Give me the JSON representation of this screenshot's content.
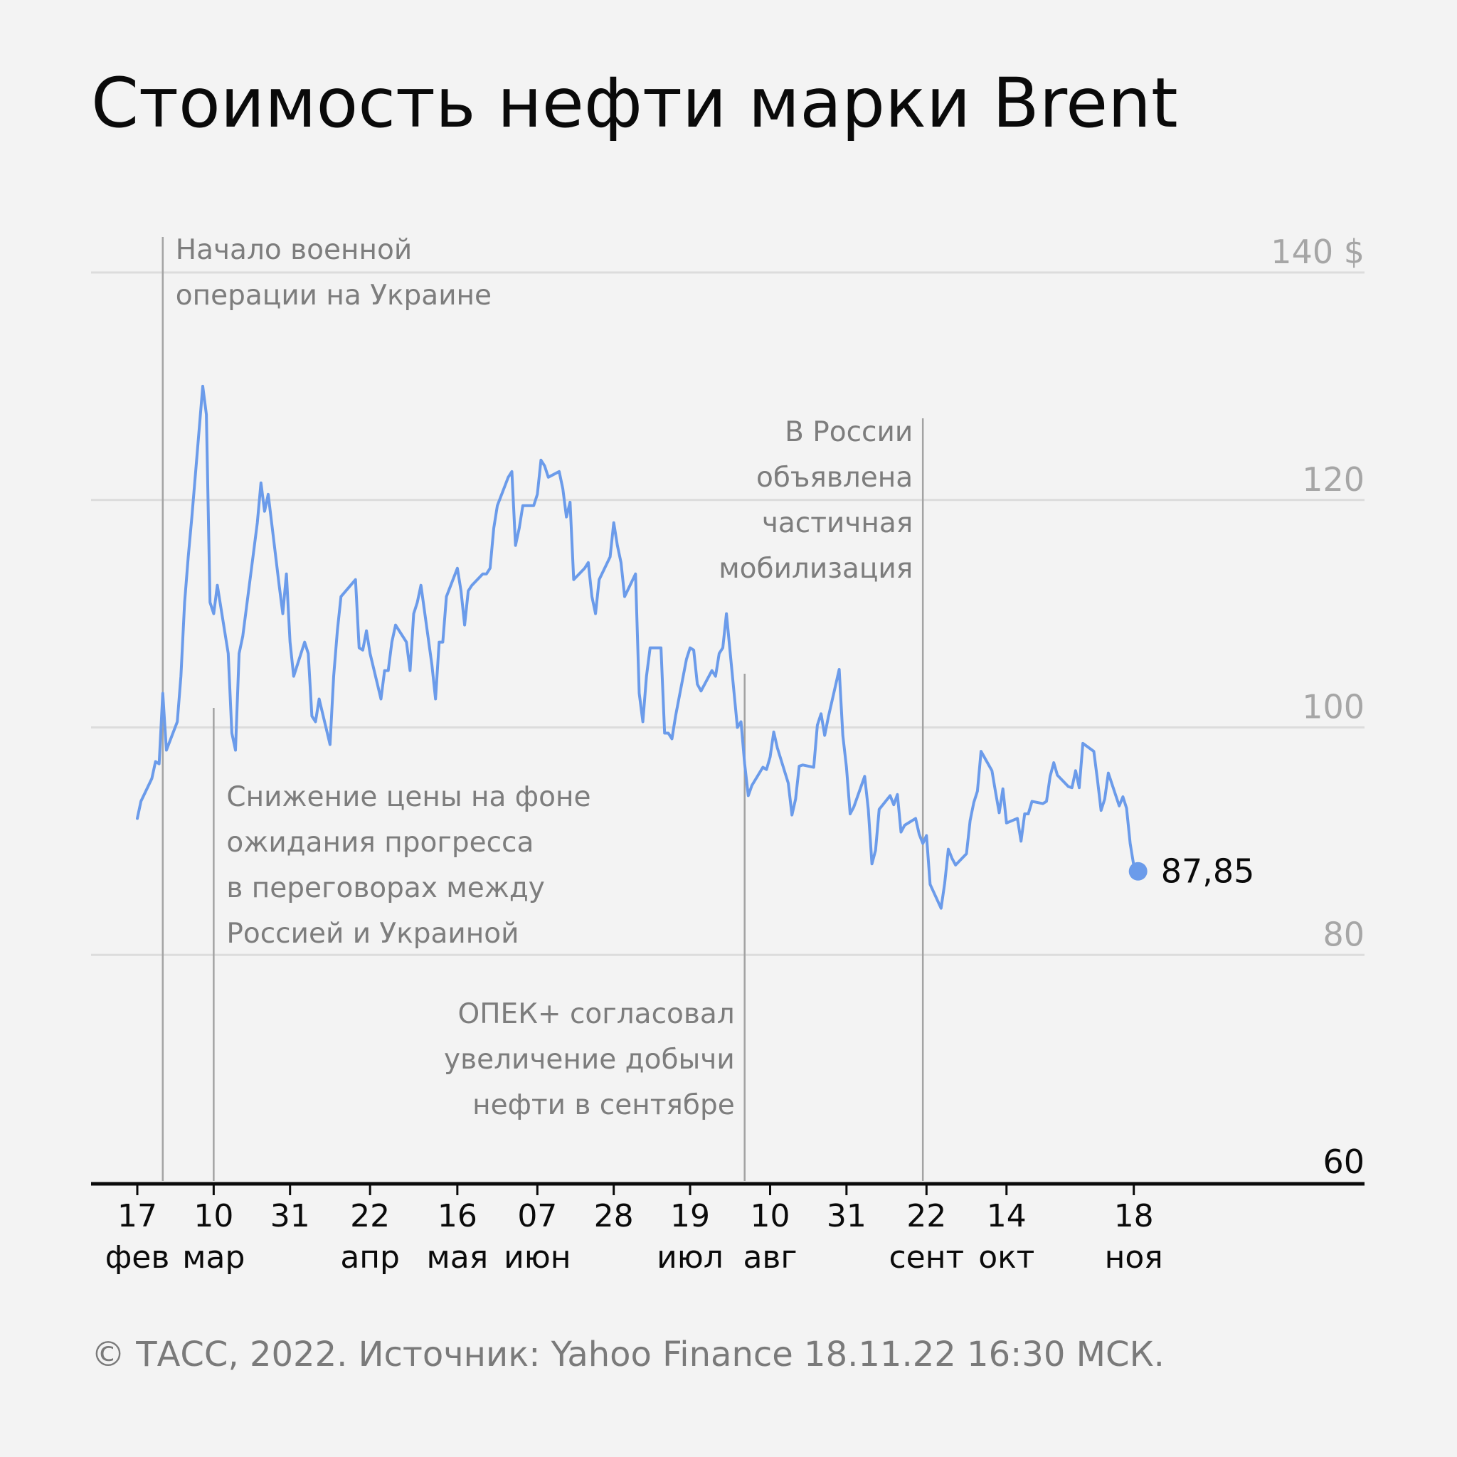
{
  "chart_data": {
    "type": "line",
    "title": "Стоимость нефти марки Brent",
    "source": "© ТАСС, 2022. Источник: Yahoo Finance 18.11.22 16:30 МСК.",
    "ylim": [
      60,
      140
    ],
    "y_ticks": [
      {
        "value": 140,
        "label": "140 $"
      },
      {
        "value": 120,
        "label": "120"
      },
      {
        "value": 100,
        "label": "100"
      },
      {
        "value": 80,
        "label": "80"
      },
      {
        "value": 60,
        "label": "60"
      }
    ],
    "x_ticks": [
      {
        "date": "2022-02-17",
        "day": "17",
        "month": "фев"
      },
      {
        "date": "2022-03-10",
        "day": "10",
        "month": "мар"
      },
      {
        "date": "2022-03-31",
        "day": "31",
        "month": ""
      },
      {
        "date": "2022-04-22",
        "day": "22",
        "month": "апр"
      },
      {
        "date": "2022-05-16",
        "day": "16",
        "month": "мая"
      },
      {
        "date": "2022-06-07",
        "day": "07",
        "month": "июн"
      },
      {
        "date": "2022-06-28",
        "day": "28",
        "month": ""
      },
      {
        "date": "2022-07-19",
        "day": "19",
        "month": "июл"
      },
      {
        "date": "2022-08-10",
        "day": "10",
        "month": "авг"
      },
      {
        "date": "2022-08-31",
        "day": "31",
        "month": ""
      },
      {
        "date": "2022-09-22",
        "day": "22",
        "month": "сент"
      },
      {
        "date": "2022-10-14",
        "day": "14",
        "month": "окт"
      },
      {
        "date": "2022-11-18",
        "day": "18",
        "month": "ноя"
      }
    ],
    "series": [
      {
        "color": "#6b9bea",
        "points": [
          [
            "2022-02-17",
            92.0
          ],
          [
            "2022-02-18",
            93.5
          ],
          [
            "2022-02-21",
            95.5
          ],
          [
            "2022-02-22",
            97.0
          ],
          [
            "2022-02-23",
            96.8
          ],
          [
            "2022-02-24",
            103.0
          ],
          [
            "2022-02-25",
            98.0
          ],
          [
            "2022-02-28",
            100.5
          ],
          [
            "2022-03-01",
            104.5
          ],
          [
            "2022-03-02",
            111.0
          ],
          [
            "2022-03-03",
            115.0
          ],
          [
            "2022-03-04",
            118.5
          ],
          [
            "2022-03-07",
            130.0
          ],
          [
            "2022-03-08",
            127.5
          ],
          [
            "2022-03-09",
            111.0
          ],
          [
            "2022-03-10",
            110.0
          ],
          [
            "2022-03-11",
            112.5
          ],
          [
            "2022-03-14",
            106.5
          ],
          [
            "2022-03-15",
            99.5
          ],
          [
            "2022-03-16",
            98.0
          ],
          [
            "2022-03-17",
            106.5
          ],
          [
            "2022-03-18",
            108.0
          ],
          [
            "2022-03-21",
            115.5
          ],
          [
            "2022-03-22",
            118.0
          ],
          [
            "2022-03-23",
            121.5
          ],
          [
            "2022-03-24",
            119.0
          ],
          [
            "2022-03-25",
            120.5
          ],
          [
            "2022-03-28",
            112.5
          ],
          [
            "2022-03-29",
            110.0
          ],
          [
            "2022-03-30",
            113.5
          ],
          [
            "2022-03-31",
            107.5
          ],
          [
            "2022-04-01",
            104.5
          ],
          [
            "2022-04-04",
            107.5
          ],
          [
            "2022-04-05",
            106.5
          ],
          [
            "2022-04-06",
            101.0
          ],
          [
            "2022-04-07",
            100.5
          ],
          [
            "2022-04-08",
            102.5
          ],
          [
            "2022-04-11",
            98.5
          ],
          [
            "2022-04-12",
            104.5
          ],
          [
            "2022-04-13",
            108.5
          ],
          [
            "2022-04-14",
            111.5
          ],
          [
            "2022-04-18",
            113.0
          ],
          [
            "2022-04-19",
            107.0
          ],
          [
            "2022-04-20",
            106.8
          ],
          [
            "2022-04-21",
            108.5
          ],
          [
            "2022-04-22",
            106.5
          ],
          [
            "2022-04-25",
            102.5
          ],
          [
            "2022-04-26",
            105.0
          ],
          [
            "2022-04-27",
            105.0
          ],
          [
            "2022-04-28",
            107.5
          ],
          [
            "2022-04-29",
            109.0
          ],
          [
            "2022-05-02",
            107.5
          ],
          [
            "2022-05-03",
            105.0
          ],
          [
            "2022-05-04",
            110.0
          ],
          [
            "2022-05-05",
            111.0
          ],
          [
            "2022-05-06",
            112.5
          ],
          [
            "2022-05-09",
            105.5
          ],
          [
            "2022-05-10",
            102.5
          ],
          [
            "2022-05-11",
            107.5
          ],
          [
            "2022-05-12",
            107.5
          ],
          [
            "2022-05-13",
            111.5
          ],
          [
            "2022-05-16",
            114.0
          ],
          [
            "2022-05-17",
            112.0
          ],
          [
            "2022-05-18",
            109.0
          ],
          [
            "2022-05-19",
            112.0
          ],
          [
            "2022-05-20",
            112.5
          ],
          [
            "2022-05-23",
            113.5
          ],
          [
            "2022-05-24",
            113.5
          ],
          [
            "2022-05-25",
            114.0
          ],
          [
            "2022-05-26",
            117.5
          ],
          [
            "2022-05-27",
            119.5
          ],
          [
            "2022-05-30",
            122.0
          ],
          [
            "2022-05-31",
            122.5
          ],
          [
            "2022-06-01",
            116.0
          ],
          [
            "2022-06-02",
            117.5
          ],
          [
            "2022-06-03",
            119.5
          ],
          [
            "2022-06-06",
            119.5
          ],
          [
            "2022-06-07",
            120.5
          ],
          [
            "2022-06-08",
            123.5
          ],
          [
            "2022-06-09",
            123.0
          ],
          [
            "2022-06-10",
            122.0
          ],
          [
            "2022-06-13",
            122.5
          ],
          [
            "2022-06-14",
            121.0
          ],
          [
            "2022-06-15",
            118.5
          ],
          [
            "2022-06-16",
            119.8
          ],
          [
            "2022-06-17",
            113.0
          ],
          [
            "2022-06-20",
            114.0
          ],
          [
            "2022-06-21",
            114.5
          ],
          [
            "2022-06-22",
            111.5
          ],
          [
            "2022-06-23",
            110.0
          ],
          [
            "2022-06-24",
            113.0
          ],
          [
            "2022-06-27",
            115.0
          ],
          [
            "2022-06-28",
            118.0
          ],
          [
            "2022-06-29",
            116.0
          ],
          [
            "2022-06-30",
            114.5
          ],
          [
            "2022-07-01",
            111.5
          ],
          [
            "2022-07-04",
            113.5
          ],
          [
            "2022-07-05",
            103.0
          ],
          [
            "2022-07-06",
            100.5
          ],
          [
            "2022-07-07",
            104.5
          ],
          [
            "2022-07-08",
            107.0
          ],
          [
            "2022-07-11",
            107.0
          ],
          [
            "2022-07-12",
            99.5
          ],
          [
            "2022-07-13",
            99.5
          ],
          [
            "2022-07-14",
            99.0
          ],
          [
            "2022-07-15",
            101.0
          ],
          [
            "2022-07-18",
            106.0
          ],
          [
            "2022-07-19",
            107.0
          ],
          [
            "2022-07-20",
            106.8
          ],
          [
            "2022-07-21",
            103.8
          ],
          [
            "2022-07-22",
            103.2
          ],
          [
            "2022-07-25",
            105.0
          ],
          [
            "2022-07-26",
            104.5
          ],
          [
            "2022-07-27",
            106.5
          ],
          [
            "2022-07-28",
            107.0
          ],
          [
            "2022-07-29",
            110.0
          ],
          [
            "2022-08-01",
            100.0
          ],
          [
            "2022-08-02",
            100.5
          ],
          [
            "2022-08-03",
            96.8
          ],
          [
            "2022-08-04",
            94.0
          ],
          [
            "2022-08-05",
            94.9
          ],
          [
            "2022-08-08",
            96.5
          ],
          [
            "2022-08-09",
            96.3
          ],
          [
            "2022-08-10",
            97.4
          ],
          [
            "2022-08-11",
            99.6
          ],
          [
            "2022-08-12",
            98.2
          ],
          [
            "2022-08-15",
            95.1
          ],
          [
            "2022-08-16",
            92.3
          ],
          [
            "2022-08-17",
            93.7
          ],
          [
            "2022-08-18",
            96.6
          ],
          [
            "2022-08-19",
            96.7
          ],
          [
            "2022-08-22",
            96.5
          ],
          [
            "2022-08-23",
            100.2
          ],
          [
            "2022-08-24",
            101.2
          ],
          [
            "2022-08-25",
            99.3
          ],
          [
            "2022-08-26",
            100.9
          ],
          [
            "2022-08-29",
            105.1
          ],
          [
            "2022-08-30",
            99.3
          ],
          [
            "2022-08-31",
            96.5
          ],
          [
            "2022-09-01",
            92.4
          ],
          [
            "2022-09-02",
            93.0
          ],
          [
            "2022-09-05",
            95.7
          ],
          [
            "2022-09-06",
            92.8
          ],
          [
            "2022-09-07",
            88.0
          ],
          [
            "2022-09-08",
            89.2
          ],
          [
            "2022-09-09",
            92.8
          ],
          [
            "2022-09-12",
            94.0
          ],
          [
            "2022-09-13",
            93.2
          ],
          [
            "2022-09-14",
            94.1
          ],
          [
            "2022-09-15",
            90.8
          ],
          [
            "2022-09-16",
            91.4
          ],
          [
            "2022-09-19",
            92.0
          ],
          [
            "2022-09-20",
            90.6
          ],
          [
            "2022-09-21",
            89.8
          ],
          [
            "2022-09-22",
            90.5
          ],
          [
            "2022-09-23",
            86.2
          ],
          [
            "2022-09-26",
            84.1
          ],
          [
            "2022-09-27",
            86.3
          ],
          [
            "2022-09-28",
            89.3
          ],
          [
            "2022-09-29",
            88.5
          ],
          [
            "2022-09-30",
            87.9
          ],
          [
            "2022-10-03",
            88.9
          ],
          [
            "2022-10-04",
            91.8
          ],
          [
            "2022-10-05",
            93.4
          ],
          [
            "2022-10-06",
            94.4
          ],
          [
            "2022-10-07",
            97.9
          ],
          [
            "2022-10-10",
            96.2
          ],
          [
            "2022-10-11",
            94.3
          ],
          [
            "2022-10-12",
            92.5
          ],
          [
            "2022-10-13",
            94.6
          ],
          [
            "2022-10-14",
            91.6
          ],
          [
            "2022-10-17",
            92.0
          ],
          [
            "2022-10-18",
            90.0
          ],
          [
            "2022-10-19",
            92.4
          ],
          [
            "2022-10-20",
            92.4
          ],
          [
            "2022-10-21",
            93.5
          ],
          [
            "2022-10-24",
            93.3
          ],
          [
            "2022-10-25",
            93.5
          ],
          [
            "2022-10-26",
            95.7
          ],
          [
            "2022-10-27",
            96.9
          ],
          [
            "2022-10-28",
            95.8
          ],
          [
            "2022-10-31",
            94.8
          ],
          [
            "2022-11-01",
            94.7
          ],
          [
            "2022-11-02",
            96.2
          ],
          [
            "2022-11-03",
            94.7
          ],
          [
            "2022-11-04",
            98.6
          ],
          [
            "2022-11-07",
            97.9
          ],
          [
            "2022-11-08",
            95.4
          ],
          [
            "2022-11-09",
            92.7
          ],
          [
            "2022-11-10",
            93.7
          ],
          [
            "2022-11-11",
            95.99
          ],
          [
            "2022-11-14",
            93.1
          ],
          [
            "2022-11-15",
            93.9
          ],
          [
            "2022-11-16",
            92.9
          ],
          [
            "2022-11-17",
            89.8
          ],
          [
            "2022-11-18",
            87.85
          ]
        ]
      }
    ],
    "last_value": {
      "date": "2022-11-18",
      "value": 87.85,
      "label": "87,85"
    },
    "annotations": [
      {
        "date": "2022-02-24",
        "lines": [
          "Начало военной",
          "операции на Украине"
        ]
      },
      {
        "date": "2022-03-10",
        "lines": [
          "Снижение цены на фоне",
          "ожидания прогресса",
          "в переговорах между",
          "Россией и Украиной"
        ]
      },
      {
        "date": "2022-08-03",
        "lines": [
          "ОПЕК+ согласовал",
          "увеличение добычи",
          "нефти в сентябре"
        ]
      },
      {
        "date": "2022-09-21",
        "lines": [
          "В России",
          "объявлена",
          "частичная",
          "мобилизация"
        ]
      }
    ]
  }
}
